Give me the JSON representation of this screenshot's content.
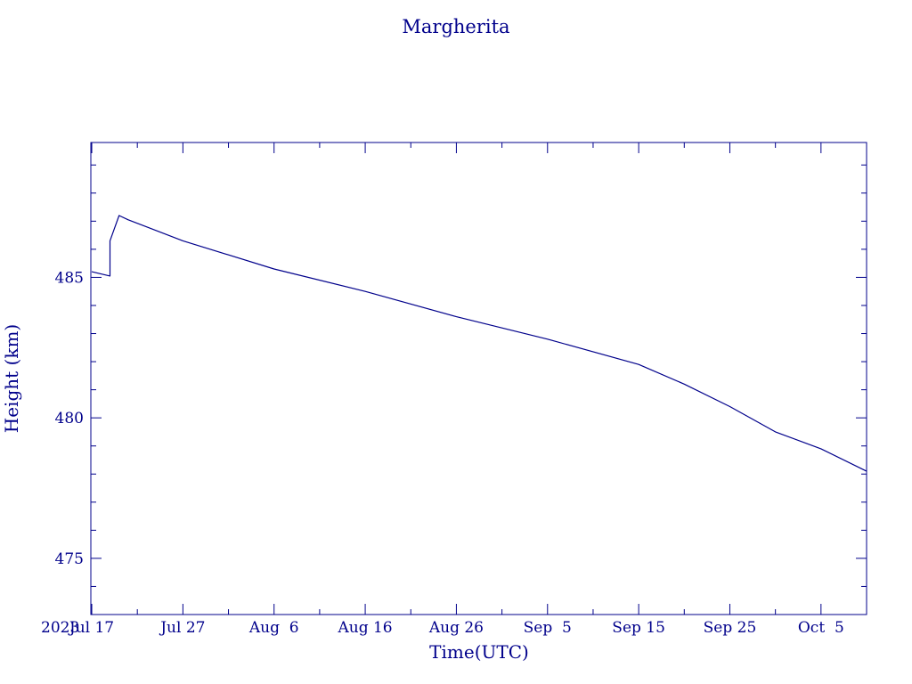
{
  "chart_data": {
    "type": "line",
    "title": "Margherita",
    "xlabel": "Time(UTC)",
    "ylabel": "Height (km)",
    "year_label": "2023",
    "ylim": [
      473,
      489.8
    ],
    "xlim": [
      "2023-07-17",
      "2023-10-10"
    ],
    "y_ticks": [
      475,
      480,
      485
    ],
    "x_ticks": [
      {
        "date": "2023-07-17",
        "label": "Jul 17"
      },
      {
        "date": "2023-07-27",
        "label": "Jul 27"
      },
      {
        "date": "2023-08-06",
        "label": "Aug  6"
      },
      {
        "date": "2023-08-16",
        "label": "Aug 16"
      },
      {
        "date": "2023-08-26",
        "label": "Aug 26"
      },
      {
        "date": "2023-09-05",
        "label": "Sep  5"
      },
      {
        "date": "2023-09-15",
        "label": "Sep 15"
      },
      {
        "date": "2023-09-25",
        "label": "Sep 25"
      },
      {
        "date": "2023-10-05",
        "label": "Oct  5"
      }
    ],
    "grid": false,
    "color": "#00008b",
    "series": [
      {
        "x": [
          "2023-07-17",
          "2023-07-19",
          "2023-07-19",
          "2023-07-20",
          "2023-07-21",
          "2023-07-27",
          "2023-08-06",
          "2023-08-16",
          "2023-08-26",
          "2023-09-05",
          "2023-09-15",
          "2023-09-20",
          "2023-09-25",
          "2023-09-30",
          "2023-10-05",
          "2023-10-10"
        ],
        "y": [
          485.2,
          485.05,
          486.3,
          487.2,
          487.05,
          486.3,
          485.3,
          484.5,
          483.6,
          482.8,
          481.9,
          481.2,
          480.4,
          479.5,
          478.9,
          478.1
        ]
      }
    ]
  }
}
